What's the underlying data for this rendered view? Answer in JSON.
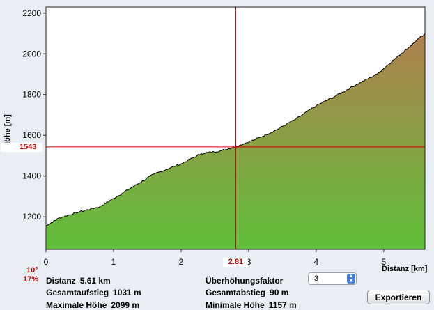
{
  "chart_data": {
    "type": "area",
    "ylabel": "Höhe [m]",
    "xlabel": "Distanz [km]",
    "xlim": [
      0,
      5.61
    ],
    "ylim": [
      1040,
      2230
    ],
    "x_ticks": [
      "0",
      "1",
      "2",
      "3",
      "4",
      "5"
    ],
    "y_ticks": [
      "1200",
      "1400",
      "1600",
      "1800",
      "2000",
      "2200"
    ],
    "x": [
      0,
      0.2,
      0.5,
      0.8,
      1.0,
      1.3,
      1.6,
      2.0,
      2.3,
      2.6,
      2.81,
      3.1,
      3.4,
      3.7,
      4.0,
      4.3,
      4.6,
      4.9,
      5.2,
      5.4,
      5.61
    ],
    "y": [
      1155,
      1195,
      1225,
      1250,
      1290,
      1350,
      1410,
      1460,
      1510,
      1525,
      1545,
      1580,
      1625,
      1680,
      1745,
      1795,
      1850,
      1900,
      1985,
      2040,
      2100
    ],
    "fill_colors": {
      "top": "#b0804f",
      "bottom": "#5fbf3a"
    },
    "cursor": {
      "x": 2.81,
      "y": 1543,
      "x_label": "2.81",
      "y_label": "1543",
      "color": "#cc0000"
    }
  },
  "slope": {
    "angle": "10°",
    "percent": "17%"
  },
  "stats": {
    "distance": {
      "label": "Distanz",
      "value": "5.61 km"
    },
    "ascent": {
      "label": "Gesamtaufstieg",
      "value": "1031 m"
    },
    "max_height": {
      "label": "Maximale Höhe",
      "value": "2099 m"
    },
    "factor": {
      "label": "Überhöhungsfaktor",
      "value": "3"
    },
    "descent": {
      "label": "Gesamtabstieg",
      "value": "90 m"
    },
    "min_height": {
      "label": "Minimale Höhe",
      "value": "1157 m"
    }
  },
  "export_button": "Exportieren"
}
